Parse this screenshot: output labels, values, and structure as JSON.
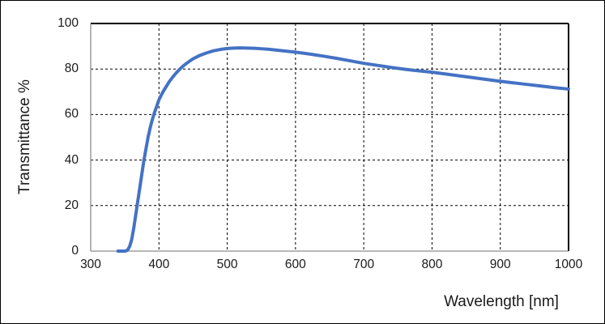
{
  "figure": {
    "background": "#ffffff",
    "frame_color": "#000000"
  },
  "style": {
    "line_color": "#4472C4",
    "line_width": 4,
    "gridline_color": "#000000",
    "gridline_dash": "3 3",
    "axis_line_color": "#8c8c8c",
    "plot_border_color": "#000000",
    "text_color": "#1a1a1a"
  },
  "chart_data": {
    "type": "line",
    "title": "",
    "xlabel": "Wavelength [nm]",
    "ylabel": "Transmittance %",
    "xlim": [
      300,
      1000
    ],
    "ylim": [
      0,
      100
    ],
    "xticks": [
      300,
      400,
      500,
      600,
      700,
      800,
      900,
      1000
    ],
    "yticks": [
      0,
      20,
      40,
      60,
      80,
      100
    ],
    "grid": true,
    "grid_style": "dashed",
    "legend": false,
    "series": [
      {
        "name": "Transmittance",
        "color": "#4472C4",
        "x": [
          340,
          346,
          351,
          354,
          357,
          360,
          363,
          366,
          369,
          372,
          375,
          378,
          381,
          384,
          387,
          390,
          393,
          396,
          400,
          405,
          410,
          415,
          420,
          425,
          430,
          435,
          440,
          445,
          450,
          460,
          470,
          480,
          490,
          500,
          510,
          520,
          530,
          540,
          550,
          560,
          575,
          600,
          620,
          640,
          660,
          680,
          700,
          720,
          740,
          760,
          780,
          800,
          820,
          840,
          860,
          880,
          900,
          920,
          940,
          960,
          980,
          1000
        ],
        "y": [
          0,
          0,
          0,
          0.5,
          2,
          5,
          10,
          16,
          22,
          28,
          34,
          40,
          45,
          50,
          54,
          57.5,
          60.5,
          63,
          66.5,
          69.5,
          72,
          74.4,
          76.4,
          78.2,
          79.8,
          81.2,
          82.4,
          83.5,
          84.5,
          86,
          87.1,
          88,
          88.6,
          89,
          89.2,
          89.3,
          89.2,
          89.1,
          88.9,
          88.7,
          88.2,
          87.4,
          86.6,
          85.7,
          84.7,
          83.6,
          82.5,
          81.6,
          80.7,
          79.9,
          79.2,
          78.6,
          77.8,
          77,
          76.2,
          75.4,
          74.6,
          73.9,
          73.2,
          72.5,
          71.8,
          71.2
        ]
      }
    ]
  }
}
